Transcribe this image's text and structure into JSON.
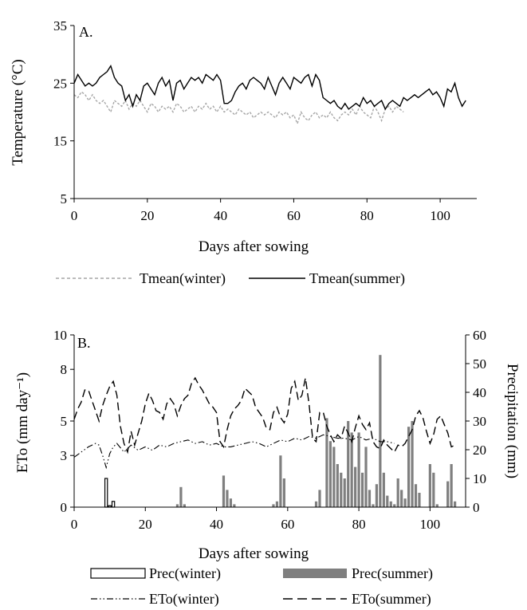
{
  "chart_data": [
    {
      "type": "line",
      "panel_label": "A.",
      "xlabel": "Days after sowing",
      "ylabel": "Temperature (°C)",
      "xlim": [
        0,
        110
      ],
      "ylim": [
        5,
        35
      ],
      "xticks": [
        "0",
        "20",
        "40",
        "60",
        "80",
        "100"
      ],
      "yticks": [
        "5",
        "15",
        "25",
        "35"
      ],
      "legend_position": "bottom",
      "series": [
        {
          "name": "Tmean(winter)",
          "style": "dashed-gray",
          "x": [
            0,
            1,
            2,
            3,
            4,
            5,
            6,
            7,
            8,
            9,
            10,
            11,
            12,
            13,
            14,
            15,
            16,
            17,
            18,
            19,
            20,
            21,
            22,
            23,
            24,
            25,
            26,
            27,
            28,
            29,
            30,
            31,
            32,
            33,
            34,
            35,
            36,
            37,
            38,
            39,
            40,
            41,
            42,
            43,
            44,
            45,
            46,
            47,
            48,
            49,
            50,
            51,
            52,
            53,
            54,
            55,
            56,
            57,
            58,
            59,
            60,
            61,
            62,
            63,
            64,
            65,
            66,
            67,
            68,
            69,
            70,
            71,
            72,
            73,
            74,
            75,
            76,
            77,
            78,
            79,
            80,
            81,
            82,
            83,
            84,
            85,
            86,
            87,
            88,
            89,
            90
          ],
          "y": [
            23,
            22.5,
            23.5,
            23,
            22,
            23,
            22,
            21.5,
            22,
            21,
            20,
            22,
            21.5,
            21,
            22,
            20.5,
            21.5,
            21,
            22,
            21,
            20,
            21.5,
            21,
            20,
            21,
            20.5,
            21,
            20,
            21.5,
            21,
            20,
            20.5,
            21,
            20,
            21,
            20.5,
            21.5,
            20.5,
            21,
            20,
            21,
            20,
            20.5,
            20,
            19.5,
            20.5,
            20,
            19.5,
            20,
            19,
            19.5,
            20,
            19.5,
            20,
            19.5,
            19,
            20,
            19.5,
            20,
            19,
            19.5,
            18,
            20,
            19,
            18.5,
            19.5,
            20,
            19,
            19.5,
            19,
            20,
            19,
            18.5,
            19.5,
            20,
            19.5,
            20.5,
            19.5,
            21,
            20,
            19.5,
            19,
            21,
            20,
            18.5,
            20.5,
            21,
            20,
            21,
            20.5,
            20
          ]
        },
        {
          "name": "Tmean(summer)",
          "style": "solid-black",
          "x": [
            0,
            1,
            2,
            3,
            4,
            5,
            6,
            7,
            8,
            9,
            10,
            11,
            12,
            13,
            14,
            15,
            16,
            17,
            18,
            19,
            20,
            21,
            22,
            23,
            24,
            25,
            26,
            27,
            28,
            29,
            30,
            31,
            32,
            33,
            34,
            35,
            36,
            37,
            38,
            39,
            40,
            41,
            42,
            43,
            44,
            45,
            46,
            47,
            48,
            49,
            50,
            51,
            52,
            53,
            54,
            55,
            56,
            57,
            58,
            59,
            60,
            61,
            62,
            63,
            64,
            65,
            66,
            67,
            68,
            69,
            70,
            71,
            72,
            73,
            74,
            75,
            76,
            77,
            78,
            79,
            80,
            81,
            82,
            83,
            84,
            85,
            86,
            87,
            88,
            89,
            90,
            91,
            92,
            93,
            94,
            95,
            96,
            97,
            98,
            99,
            100,
            101,
            102,
            103,
            104,
            105,
            106,
            107
          ],
          "y": [
            25,
            26.5,
            25.5,
            24.5,
            25,
            24.5,
            25,
            26,
            26.5,
            27,
            28,
            26,
            25,
            24.5,
            22,
            23,
            21,
            23,
            22,
            24.5,
            25,
            24,
            23,
            25,
            26,
            24.5,
            25.5,
            22,
            25,
            25.5,
            24,
            25,
            26,
            25.5,
            26,
            25,
            26.5,
            26,
            25.5,
            26.5,
            25.5,
            21.5,
            21.5,
            22,
            23.5,
            24.5,
            25,
            24,
            25.5,
            26,
            25.5,
            25,
            24,
            26,
            24.5,
            23,
            25,
            26,
            25,
            24,
            26,
            25.5,
            25,
            26,
            26.5,
            24.5,
            26.5,
            25.5,
            22.5,
            22,
            21.5,
            22,
            21,
            20.5,
            21.5,
            20.5,
            21,
            21.5,
            21,
            22.5,
            21.5,
            22,
            21,
            21.5,
            22,
            20.5,
            21.5,
            22,
            21.5,
            21,
            22.5,
            22,
            22.5,
            23,
            22.5,
            23,
            23.5,
            24,
            23,
            23.5,
            22.5,
            21,
            24,
            23.5,
            25,
            22.5,
            21,
            22
          ]
        }
      ]
    },
    {
      "type": "bar+line",
      "panel_label": "B.",
      "xlabel": "Days after sowing",
      "ylabel": "ETo (mm day⁻¹)",
      "y2label": "Precipitation (mm)",
      "xlim": [
        0,
        110
      ],
      "ylim": [
        0,
        10
      ],
      "y2lim": [
        0,
        60
      ],
      "xticks": [
        "0",
        "20",
        "40",
        "60",
        "80",
        "100"
      ],
      "yticks": [
        "0",
        "3",
        "5",
        "8",
        "10"
      ],
      "y2ticks": [
        "0",
        "10",
        "20",
        "30",
        "40",
        "50",
        "60"
      ],
      "legend_position": "bottom",
      "bars": [
        {
          "name": "Prec(winter)",
          "style": "outline",
          "x": [
            9,
            10,
            11
          ],
          "y": [
            10,
            0.5,
            2
          ]
        },
        {
          "name": "Prec(summer)",
          "style": "filled-gray",
          "x": [
            29,
            30,
            31,
            42,
            43,
            44,
            45,
            56,
            57,
            58,
            59,
            68,
            69,
            71,
            72,
            73,
            74,
            75,
            76,
            77,
            78,
            79,
            80,
            81,
            82,
            83,
            84,
            85,
            86,
            87,
            88,
            89,
            90,
            91,
            92,
            93,
            94,
            95,
            96,
            97,
            100,
            101,
            102,
            105,
            106,
            107
          ],
          "y": [
            1,
            7,
            1,
            11,
            6,
            3,
            1,
            1,
            2,
            18,
            10,
            2,
            6,
            31,
            23,
            21,
            15,
            12,
            10,
            30,
            26,
            14,
            26,
            12,
            21,
            6,
            1,
            8,
            53,
            12,
            4,
            2,
            1,
            10,
            6,
            3,
            28,
            30,
            8,
            5,
            15,
            12,
            1,
            9,
            15,
            2
          ]
        }
      ],
      "series": [
        {
          "name": "ETo(winter)",
          "style": "dash-dot",
          "x": [
            0,
            2,
            4,
            6,
            7,
            8,
            9,
            10,
            11,
            12,
            14,
            16,
            18,
            20,
            22,
            24,
            26,
            28,
            30,
            32,
            34,
            36,
            38,
            40,
            42,
            44,
            46,
            48,
            50,
            52,
            54,
            56,
            58,
            60,
            62,
            64,
            66,
            68,
            70,
            72,
            74,
            76,
            78,
            80,
            82,
            84,
            86,
            88,
            90
          ],
          "y": [
            2.9,
            3.2,
            3.5,
            3.7,
            3.6,
            3,
            2.3,
            3.1,
            3.5,
            3.7,
            3.2,
            3.6,
            3.3,
            3.5,
            3.3,
            3.6,
            3.5,
            3.7,
            3.8,
            3.9,
            3.7,
            3.8,
            3.6,
            3.7,
            3.5,
            3.5,
            3.6,
            3.7,
            3.8,
            3.7,
            3.5,
            3.7,
            3.9,
            3.8,
            4,
            3.9,
            4.1,
            4,
            4.2,
            4.1,
            4,
            4,
            3.9,
            4.1,
            3.9,
            4,
            3.8,
            3.8,
            3.7
          ]
        },
        {
          "name": "ETo(summer)",
          "style": "long-dash",
          "x": [
            0,
            1,
            2,
            3,
            4,
            5,
            6,
            7,
            8,
            9,
            10,
            11,
            12,
            13,
            14,
            15,
            16,
            17,
            18,
            19,
            20,
            21,
            22,
            23,
            24,
            25,
            26,
            27,
            28,
            29,
            30,
            31,
            32,
            33,
            34,
            35,
            36,
            37,
            38,
            39,
            40,
            41,
            42,
            43,
            44,
            45,
            46,
            47,
            48,
            49,
            50,
            51,
            52,
            53,
            54,
            55,
            56,
            57,
            58,
            59,
            60,
            61,
            62,
            63,
            64,
            65,
            66,
            67,
            68,
            69,
            70,
            71,
            72,
            73,
            74,
            75,
            76,
            77,
            78,
            79,
            80,
            81,
            82,
            83,
            84,
            85,
            86,
            87,
            88,
            89,
            90,
            91,
            92,
            93,
            94,
            95,
            96,
            97,
            98,
            99,
            100,
            101,
            102,
            103,
            104,
            105,
            106,
            107
          ],
          "y": [
            5.1,
            5.7,
            6.1,
            6.8,
            6.8,
            6.2,
            5.6,
            5,
            5.9,
            6.5,
            7,
            7.3,
            6.5,
            4.7,
            3.7,
            3.2,
            4.4,
            3.6,
            4.3,
            5,
            6,
            6.6,
            6.2,
            5.6,
            5.5,
            5.1,
            6,
            6.3,
            6,
            5.3,
            5.9,
            6.3,
            6.5,
            7.2,
            7.5,
            7.1,
            6.8,
            6.4,
            6,
            5.8,
            5.5,
            3.8,
            3.5,
            4.5,
            5.3,
            5.7,
            5.9,
            6.2,
            6.9,
            6.7,
            6.5,
            5.8,
            5.5,
            5.2,
            4.6,
            4.5,
            5.5,
            5.8,
            5.2,
            4.9,
            5.4,
            6.9,
            7.3,
            6.2,
            6.5,
            7.5,
            6,
            4,
            3.8,
            5.5,
            5.5,
            4.7,
            4.2,
            3.8,
            4.2,
            4,
            4.7,
            4.3,
            3.8,
            4.6,
            5.3,
            4.8,
            4.5,
            4.9,
            3.8,
            3.5,
            3.4,
            3.9,
            3.6,
            3.4,
            3.2,
            3.6,
            3.5,
            3.7,
            4.1,
            4.5,
            5.3,
            5.6,
            5.2,
            4.4,
            3.7,
            4.2,
            5.1,
            5.3,
            4.8,
            4.3,
            3.5,
            3.6
          ]
        }
      ]
    }
  ]
}
